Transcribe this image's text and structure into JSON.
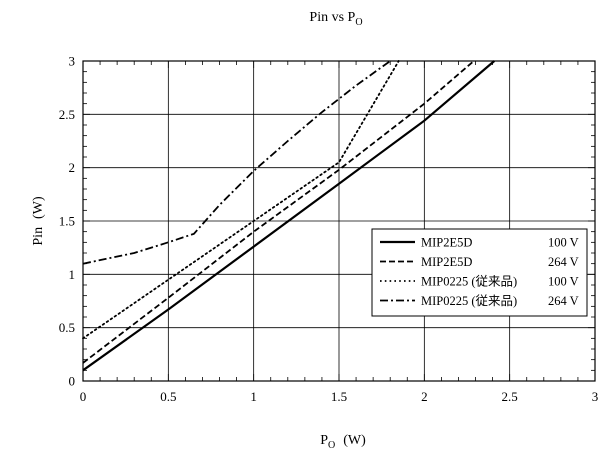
{
  "chart_data": {
    "type": "line",
    "title": "Pin vs P",
    "title_sub": "O",
    "xlabel": "P",
    "xlabel_sub": "O",
    "xlabel_unit": "(W)",
    "ylabel": "Pin",
    "ylabel_unit": "(W)",
    "xlim": [
      0,
      3
    ],
    "ylim": [
      0,
      3
    ],
    "xticks": [
      "0",
      "0.5",
      "1",
      "1.5",
      "2",
      "2.5",
      "3"
    ],
    "yticks": [
      "0",
      "0.5",
      "1",
      "1.5",
      "2",
      "2.5",
      "3"
    ],
    "grid": true,
    "legend_position": "right",
    "series": [
      {
        "name": "MIP2E5D",
        "voltage": "100 V",
        "style": "solid",
        "x": [
          0,
          0.5,
          1,
          1.5,
          2,
          2.41
        ],
        "y": [
          0.1,
          0.67,
          1.26,
          1.85,
          2.44,
          3.0
        ]
      },
      {
        "name": "MIP2E5D",
        "voltage": "264 V",
        "style": "dashed",
        "x": [
          0,
          0.5,
          1,
          1.5,
          2,
          2.29
        ],
        "y": [
          0.17,
          0.78,
          1.4,
          1.98,
          2.6,
          3.0
        ]
      },
      {
        "name": "MIP0225 (従来品)",
        "voltage": "100 V",
        "style": "dotted",
        "x": [
          0,
          0.5,
          1,
          1.5,
          1.85
        ],
        "y": [
          0.4,
          0.95,
          1.5,
          2.05,
          3.0
        ]
      },
      {
        "name": "MIP0225 (従来品)",
        "voltage": "264 V",
        "style": "dashdot",
        "x": [
          0,
          0.3,
          0.5,
          0.65,
          0.8,
          1.0,
          1.2,
          1.4,
          1.6,
          1.8
        ],
        "y": [
          1.1,
          1.2,
          1.3,
          1.38,
          1.65,
          1.97,
          2.25,
          2.52,
          2.77,
          3.0
        ]
      }
    ]
  }
}
